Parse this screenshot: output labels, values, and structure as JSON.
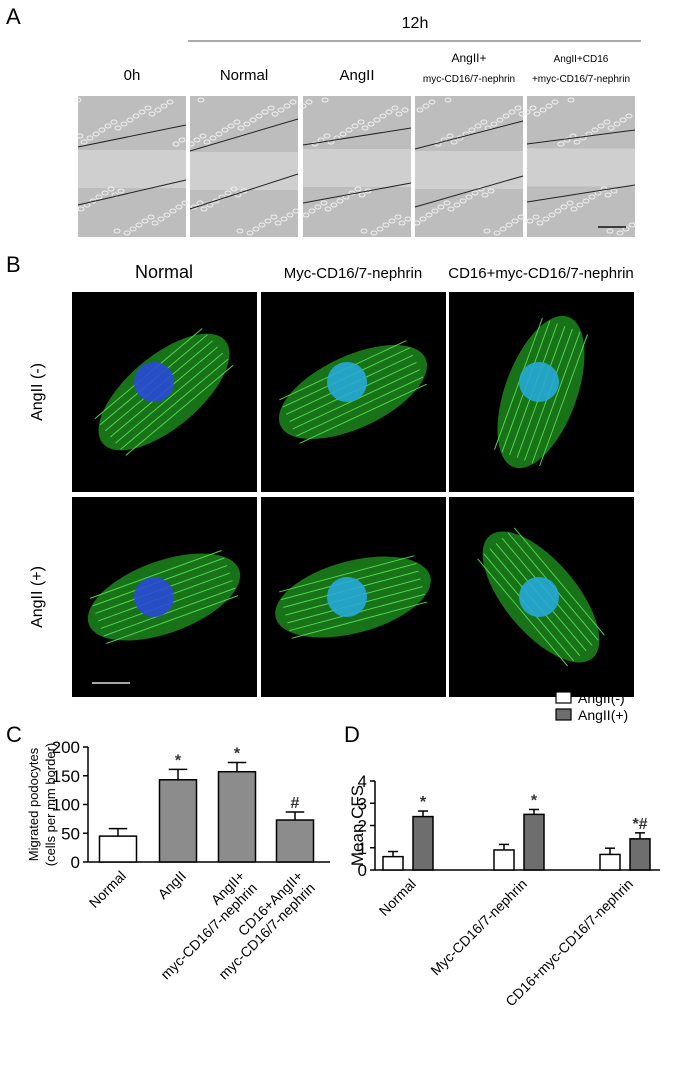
{
  "panel_a": {
    "label": "A",
    "timepoint": "12h",
    "columns": [
      [
        "0h"
      ],
      [
        "Normal"
      ],
      [
        "AngII"
      ],
      [
        "AngII+",
        "myc-CD16/7-nephrin"
      ],
      [
        "AngII+CD16",
        "+myc-CD16/7-nephrin"
      ]
    ]
  },
  "panel_b": {
    "label": "B",
    "columns": [
      "Normal",
      "Myc-CD16/7-nephrin",
      "CD16+myc-CD16/7-nephrin"
    ],
    "rows": [
      "AngII (-)",
      "AngII (+)"
    ]
  },
  "chart_data": [
    {
      "label": "C",
      "type": "bar",
      "y_label": [
        "Migrated podocytes",
        "(cells per mm border)"
      ],
      "categories": [
        [
          "Normal"
        ],
        [
          "AngII"
        ],
        [
          "AngII+",
          "myc-CD16/7-nephrin"
        ],
        [
          "CD16+AngII+",
          "myc-CD16/7-nephrin"
        ]
      ],
      "values": [
        45,
        143,
        157,
        73
      ],
      "errors": [
        13,
        18,
        16,
        14
      ],
      "colors": [
        "#ffffff",
        "#8c8c8c",
        "#8c8c8c",
        "#8c8c8c"
      ],
      "annotations": [
        null,
        "*",
        "*",
        "#"
      ],
      "ylim": [
        0,
        200
      ],
      "yticks": [
        0,
        50,
        100,
        150,
        200
      ]
    },
    {
      "label": "D",
      "type": "bar",
      "y_label": [
        "Mean CFS"
      ],
      "categories": [
        [
          "Normal"
        ],
        [
          "Myc-CD16/7-nephrin"
        ],
        [
          "CD16+myc-CD16/7-nephrin"
        ]
      ],
      "series": [
        {
          "name": "AngII(-)",
          "color": "#ffffff",
          "values": [
            0.6,
            0.9,
            0.7
          ],
          "errors": [
            0.23,
            0.25,
            0.28
          ],
          "annotations": [
            null,
            null,
            null
          ]
        },
        {
          "name": "AngII(+)",
          "color": "#6e6e6e",
          "values": [
            2.4,
            2.5,
            1.4
          ],
          "errors": [
            0.25,
            0.22,
            0.27
          ],
          "annotations": [
            "*",
            "*",
            "*#"
          ]
        }
      ],
      "ylim": [
        0,
        4
      ],
      "yticks": [
        0,
        1,
        2,
        3,
        4
      ],
      "legend": "top-right"
    }
  ]
}
